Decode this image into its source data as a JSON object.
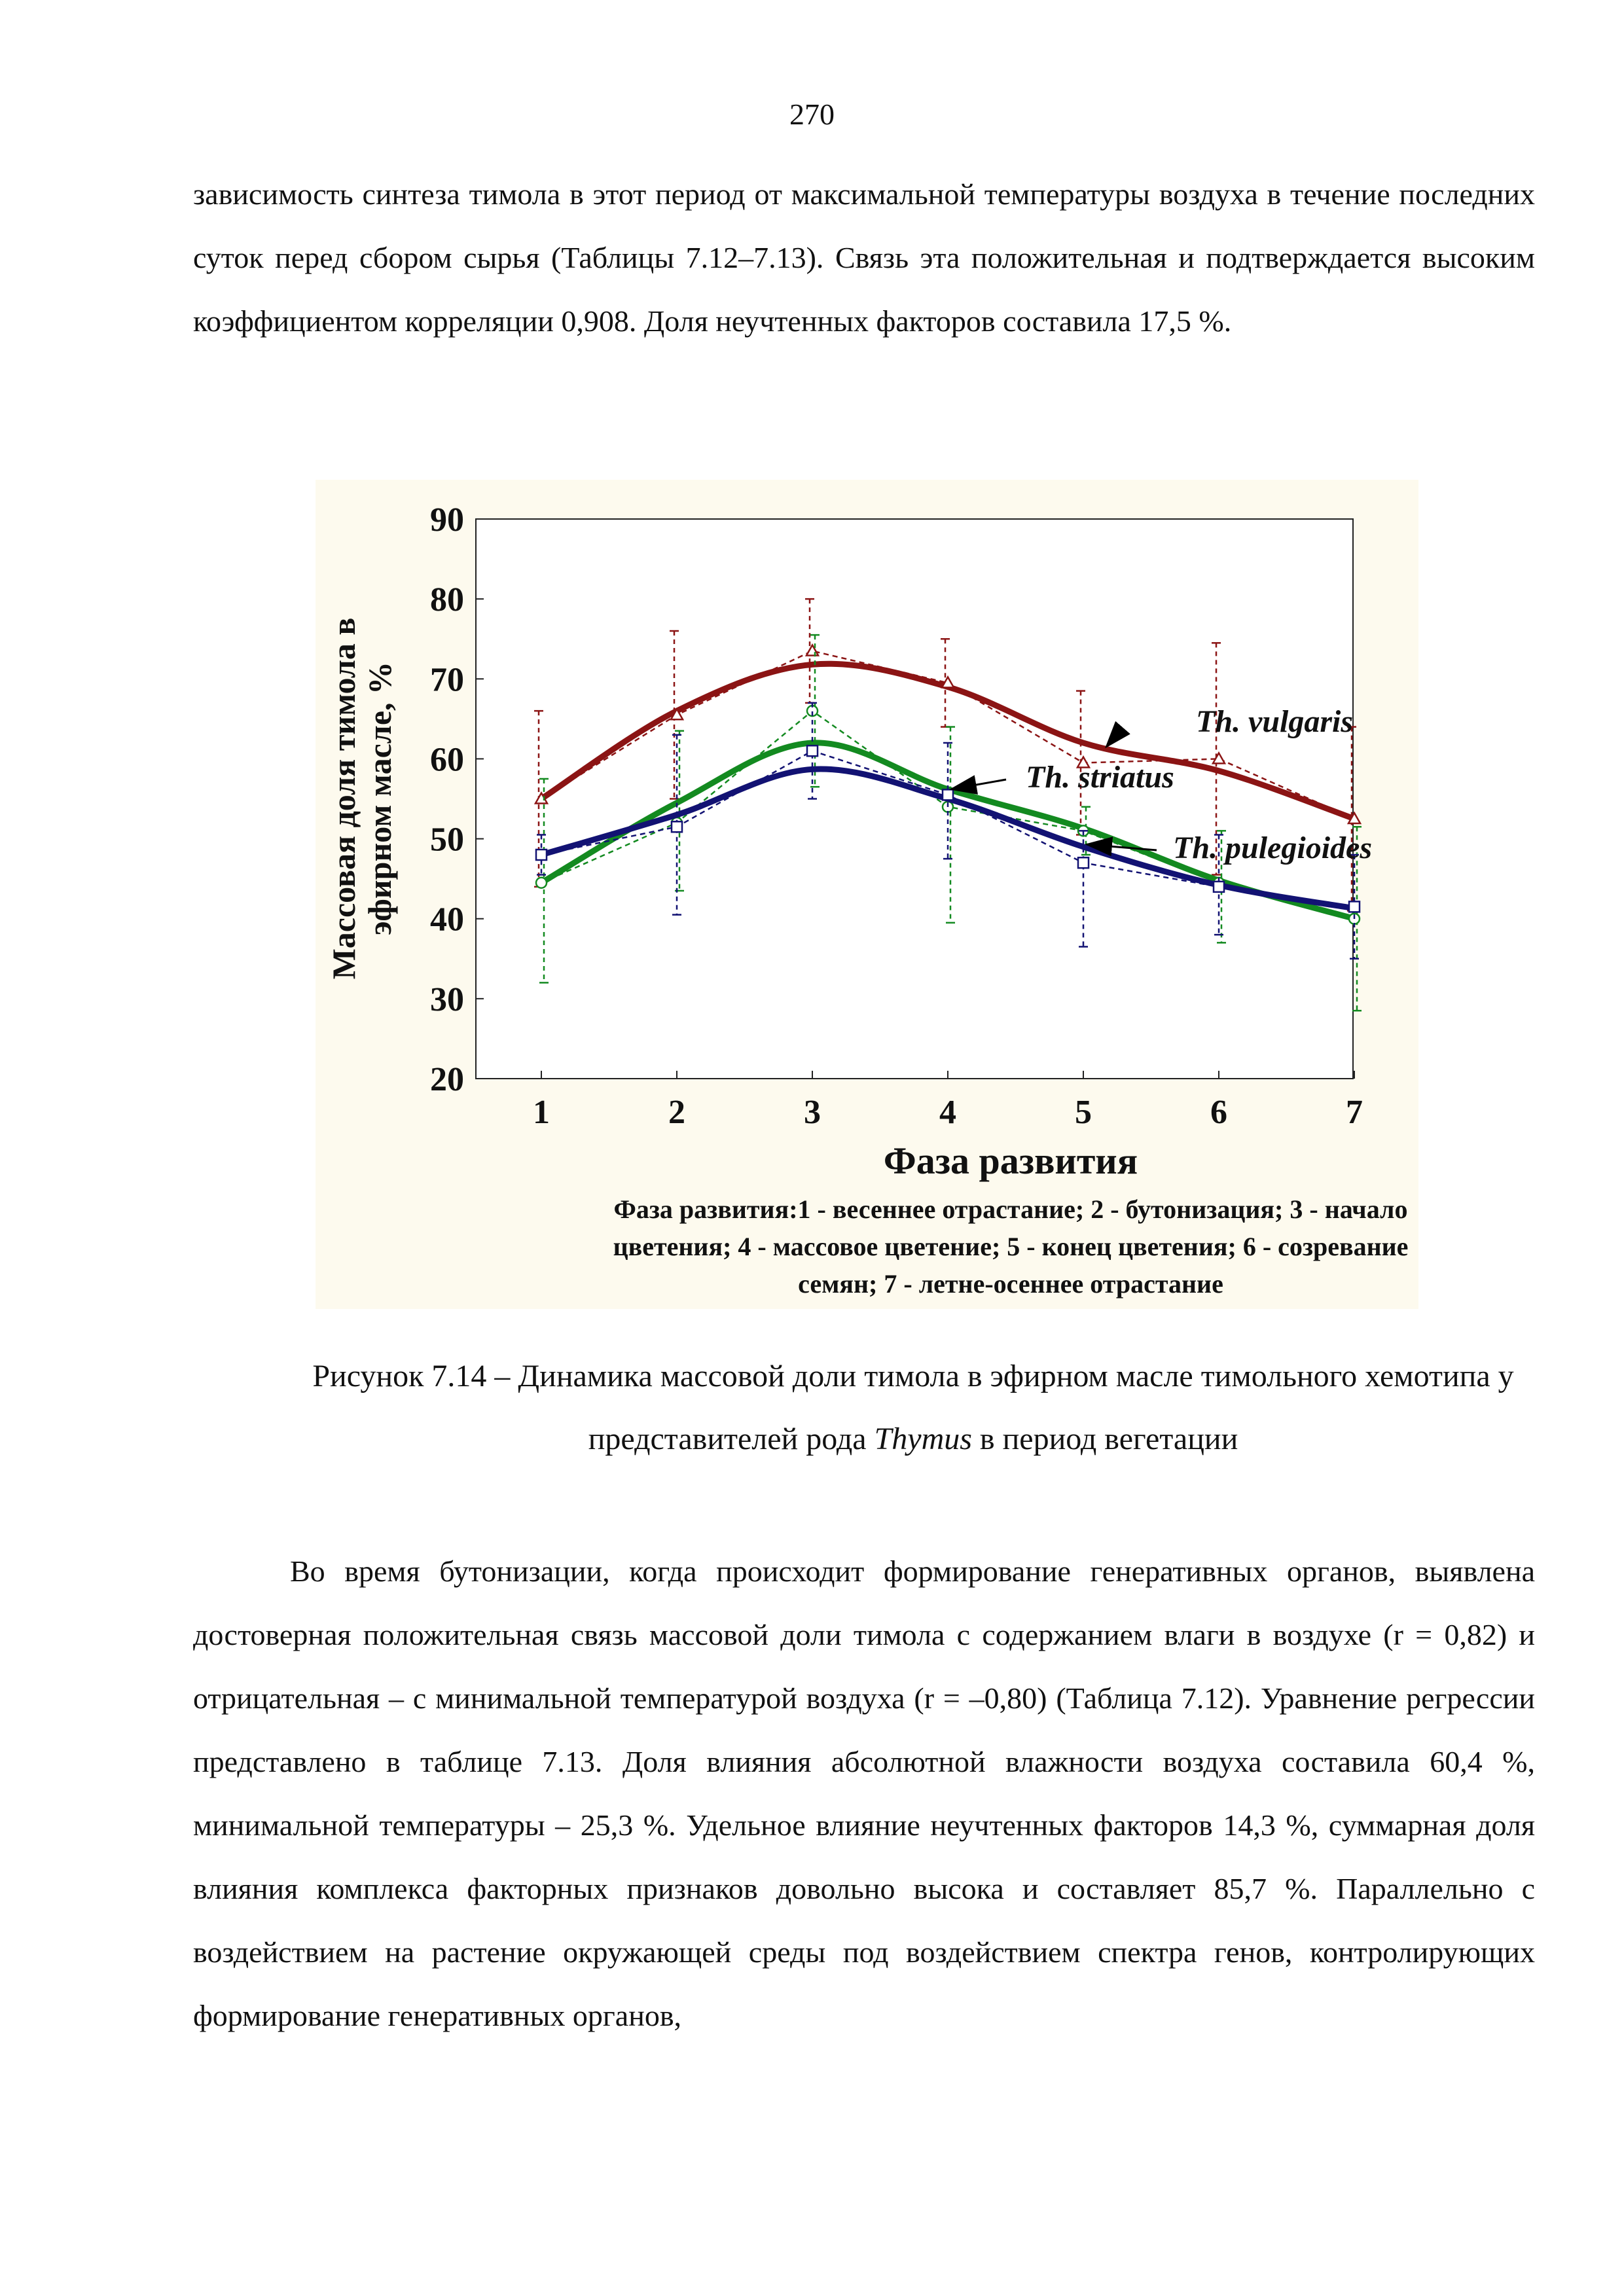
{
  "page_number": "270",
  "paragraph_1": "зависимость синтеза тимола в этот период от максимальной температуры воздуха в течение последних суток перед сбором сырья (Таблицы 7.12–7.13). Связь эта положительная и подтверждается высоким коэффициентом корреляции 0,908. Доля неучтенных факторов составила 17,5 %.",
  "caption": {
    "prefix": "Рисунок 7.14 – Динамика массовой доли тимола в эфирном масле тимольного хемотипа у представителей рода ",
    "genus": "Thymus",
    "suffix": " в период вегетации"
  },
  "paragraph_2": "Во время бутонизации, когда происходит формирование генеративных органов, выявлена достоверная положительная связь массовой доли тимола с содержанием влаги в воздухе (r = 0,82) и отрицательная – с минимальной температурой воздуха (r = –0,80) (Таблица 7.12). Уравнение регрессии представлено в таблице 7.13. Доля влияния абсолютной влажности воздуха составила 60,4 %, минимальной температуры – 25,3 %. Удельное влияние неучтенных факторов 14,3 %, суммарная доля влияния комплекса факторных признаков довольно высока и составляет 85,7 %. Параллельно с воздействием на растение окружающей среды под воздействием спектра генов, контролирующих формирование генеративных органов,",
  "chart_data": {
    "type": "line",
    "xlabel": "Фаза развития",
    "ylabel_line1": "Массовая доля тимола в",
    "ylabel_line2": "эфирном масле, %",
    "categories": [
      "1",
      "2",
      "3",
      "4",
      "5",
      "6",
      "7"
    ],
    "ylim": [
      20,
      90
    ],
    "yticks": [
      "20",
      "30",
      "40",
      "50",
      "60",
      "70",
      "80",
      "90"
    ],
    "legend_note_lines": [
      "Фаза развития:1 - весеннее отрастание; 2 - бутонизация; 3 - начало",
      "цветения; 4 - массовое цветение; 5 - конец цветения; 6 - созревание",
      "семян; 7 - летне-осеннее отрастание"
    ],
    "series": [
      {
        "name": "Th. vulgaris",
        "color": "#8b1414",
        "marker": "triangle",
        "observed": [
          55,
          65.5,
          73.5,
          69.5,
          59.5,
          60,
          52.5
        ],
        "error_upper": [
          66,
          76,
          80,
          75,
          68.5,
          74.5,
          64
        ],
        "error_lower": [
          44,
          55,
          67,
          64,
          50.5,
          45.5,
          41
        ],
        "trend": [
          55,
          66,
          71.8,
          69,
          62,
          58.5,
          52.5
        ]
      },
      {
        "name": "Th. striatus",
        "color": "#138a20",
        "marker": "circle",
        "observed": [
          44.5,
          52,
          66,
          54,
          51,
          44.5,
          40
        ],
        "error_upper": [
          57.5,
          63.5,
          75.5,
          64,
          54,
          51,
          51.5
        ],
        "error_lower": [
          32,
          43.5,
          56.5,
          39.5,
          48,
          37,
          28.5
        ],
        "trend": [
          44.5,
          54.5,
          62,
          56.2,
          51.3,
          44.8,
          40
        ]
      },
      {
        "name": "Th. pulegioides",
        "color": "#121273",
        "marker": "square",
        "observed": [
          48,
          51.5,
          61,
          55.5,
          47,
          44,
          41.5
        ],
        "error_upper": [
          50.5,
          63,
          67,
          62,
          51,
          50.5,
          48
        ],
        "error_lower": [
          45.5,
          40.5,
          55,
          47.5,
          36.5,
          38,
          35
        ],
        "trend": [
          48,
          53,
          58.7,
          55,
          49,
          44.2,
          41.3
        ]
      }
    ]
  }
}
